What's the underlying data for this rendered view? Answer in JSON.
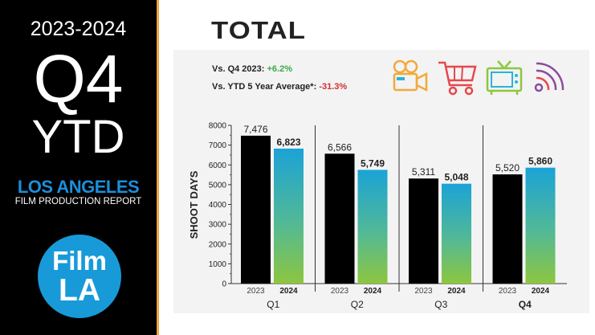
{
  "sidebar": {
    "years": "2023-2024",
    "quarter": "Q4",
    "ytd": "YTD",
    "city": "LOS ANGELES",
    "report": "FILM PRODUCTION REPORT",
    "logo_top": "Film",
    "logo_bottom": "LA"
  },
  "header": {
    "title": "TOTAL",
    "stat1_label": "Vs. Q4 2023: ",
    "stat1_value": "+6.2%",
    "stat2_label": "Vs. YTD 5 Year Average*: ",
    "stat2_value": "-31.3%"
  },
  "icons": [
    "film-camera-icon",
    "shopping-cart-icon",
    "television-icon",
    "broadcast-wifi-icon"
  ],
  "colors": {
    "accent_orange": "#f0a540",
    "brand_blue": "#189ad8",
    "bar_2023": "#000000",
    "bar_2024_top": "#1ba3d6",
    "bar_2024_bottom": "#8dc63f",
    "positive": "#3aa84a",
    "negative": "#d32f2f"
  },
  "chart_data": {
    "type": "bar",
    "title": "TOTAL",
    "ylabel": "SHOOT DAYS",
    "ylim": [
      0,
      8000
    ],
    "yticks": [
      0,
      1000,
      2000,
      3000,
      4000,
      5000,
      6000,
      7000,
      8000
    ],
    "categories": [
      "Q1",
      "Q2",
      "Q3",
      "Q4"
    ],
    "sub_labels": [
      "2023",
      "2024"
    ],
    "series": [
      {
        "name": "2023",
        "values": [
          7476,
          6566,
          5311,
          5520
        ],
        "labels": [
          "7,476",
          "6,566",
          "5,311",
          "5,520"
        ]
      },
      {
        "name": "2024",
        "values": [
          6823,
          5749,
          5048,
          5860
        ],
        "labels": [
          "6,823",
          "5,749",
          "5,048",
          "5,860"
        ]
      }
    ]
  }
}
